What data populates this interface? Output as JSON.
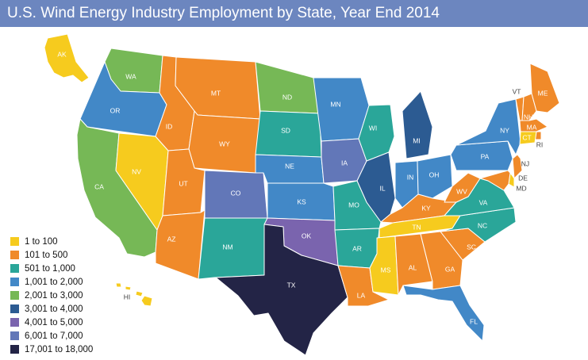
{
  "title": "U.S. Wind Energy Industry Employment by State, Year End 2014",
  "colors": {
    "1": "#f6cb1e",
    "2": "#f08a2a",
    "3": "#2aa699",
    "4": "#4288c7",
    "5": "#76b856",
    "6": "#2c5b92",
    "7": "#7a64ae",
    "8": "#6277b8",
    "9": "#232446"
  },
  "legend": [
    {
      "label": "1 to 100",
      "color": "#f6cb1e"
    },
    {
      "label": "101 to 500",
      "color": "#f08a2a"
    },
    {
      "label": "501 to 1,000",
      "color": "#2aa699"
    },
    {
      "label": "1,001 to 2,000",
      "color": "#4288c7"
    },
    {
      "label": "2,001 to 3,000",
      "color": "#76b856"
    },
    {
      "label": "3,001 to 4,000",
      "color": "#2c5b92"
    },
    {
      "label": "4,001 to 5,000",
      "color": "#7a64ae"
    },
    {
      "label": "6,001 to 7,000",
      "color": "#6277b8"
    },
    {
      "label": "17,001 to 18,000",
      "color": "#232446"
    }
  ],
  "states": [
    {
      "abbr": "AK",
      "cat": 1
    },
    {
      "abbr": "HI",
      "cat": 1
    },
    {
      "abbr": "WA",
      "cat": 5
    },
    {
      "abbr": "OR",
      "cat": 4
    },
    {
      "abbr": "CA",
      "cat": 5
    },
    {
      "abbr": "NV",
      "cat": 1
    },
    {
      "abbr": "ID",
      "cat": 2
    },
    {
      "abbr": "MT",
      "cat": 2
    },
    {
      "abbr": "WY",
      "cat": 2
    },
    {
      "abbr": "UT",
      "cat": 2
    },
    {
      "abbr": "AZ",
      "cat": 2
    },
    {
      "abbr": "CO",
      "cat": 8
    },
    {
      "abbr": "NM",
      "cat": 3
    },
    {
      "abbr": "ND",
      "cat": 5
    },
    {
      "abbr": "SD",
      "cat": 3
    },
    {
      "abbr": "NE",
      "cat": 4
    },
    {
      "abbr": "KS",
      "cat": 4
    },
    {
      "abbr": "OK",
      "cat": 7
    },
    {
      "abbr": "TX",
      "cat": 9
    },
    {
      "abbr": "MN",
      "cat": 4
    },
    {
      "abbr": "IA",
      "cat": 8
    },
    {
      "abbr": "MO",
      "cat": 3
    },
    {
      "abbr": "AR",
      "cat": 3
    },
    {
      "abbr": "LA",
      "cat": 2
    },
    {
      "abbr": "WI",
      "cat": 3
    },
    {
      "abbr": "IL",
      "cat": 6
    },
    {
      "abbr": "MI",
      "cat": 6
    },
    {
      "abbr": "IN",
      "cat": 4
    },
    {
      "abbr": "OH",
      "cat": 4
    },
    {
      "abbr": "KY",
      "cat": 2
    },
    {
      "abbr": "TN",
      "cat": 1
    },
    {
      "abbr": "MS",
      "cat": 1
    },
    {
      "abbr": "AL",
      "cat": 2
    },
    {
      "abbr": "GA",
      "cat": 2
    },
    {
      "abbr": "FL",
      "cat": 4
    },
    {
      "abbr": "SC",
      "cat": 2
    },
    {
      "abbr": "NC",
      "cat": 3
    },
    {
      "abbr": "VA",
      "cat": 3
    },
    {
      "abbr": "WV",
      "cat": 2
    },
    {
      "abbr": "PA",
      "cat": 4
    },
    {
      "abbr": "NY",
      "cat": 4
    },
    {
      "abbr": "VT",
      "cat": 2
    },
    {
      "abbr": "NH",
      "cat": 2
    },
    {
      "abbr": "ME",
      "cat": 2
    },
    {
      "abbr": "MA",
      "cat": 2
    },
    {
      "abbr": "RI",
      "cat": 2
    },
    {
      "abbr": "CT",
      "cat": 1
    },
    {
      "abbr": "NJ",
      "cat": 2
    },
    {
      "abbr": "DE",
      "cat": 1
    },
    {
      "abbr": "MD",
      "cat": 2
    }
  ]
}
